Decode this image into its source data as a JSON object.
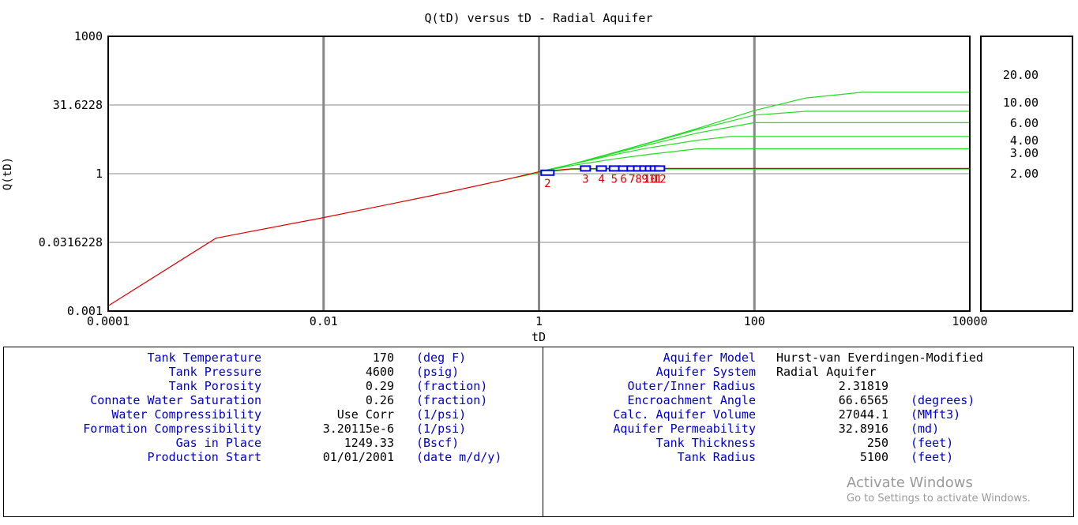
{
  "chart_data": {
    "type": "line",
    "title": "Q(tD) versus tD - Radial Aquifer",
    "xlabel": "tD",
    "ylabel": "Q(tD)",
    "xscale": "log",
    "yscale": "log",
    "xlim": [
      0.0001,
      10000
    ],
    "ylim": [
      0.001,
      1000
    ],
    "x_ticks": [
      "0.0001",
      "0.01",
      "1",
      "100",
      "10000"
    ],
    "y_ticks": [
      "0.001",
      "0.0316228",
      "1",
      "31.6228",
      "1000"
    ],
    "grid": true,
    "colors": {
      "base": "#dd0000",
      "curves": "#22dd22",
      "markers": "#0000ee",
      "marker_labels": "#dd0000",
      "grid": "#888888"
    },
    "base_curve": {
      "x": [
        0.0001,
        0.001,
        0.01,
        0.1,
        0.5,
        1,
        2,
        5,
        10000
      ],
      "y": [
        0.0013,
        0.039,
        0.11,
        0.33,
        0.75,
        1.1,
        1.28,
        1.3,
        1.3
      ]
    },
    "series": [
      {
        "name": "2.00",
        "x": [
          0.5,
          1,
          2,
          4,
          10000
        ],
        "y": [
          0.75,
          1.05,
          1.25,
          1.26,
          1.26
        ]
      },
      {
        "name": "3.00",
        "x": [
          1,
          2,
          5,
          10,
          30,
          10000
        ],
        "y": [
          1.1,
          1.5,
          2.1,
          2.6,
          3.5,
          3.5
        ]
      },
      {
        "name": "4.00",
        "x": [
          1,
          2,
          5,
          10,
          30,
          60,
          10000
        ],
        "y": [
          1.1,
          1.6,
          2.6,
          3.6,
          5.4,
          6.5,
          6.5
        ]
      },
      {
        "name": "6.00",
        "x": [
          1,
          2,
          5,
          10,
          30,
          100,
          10000
        ],
        "y": [
          1.1,
          1.6,
          2.8,
          4.2,
          7.8,
          13,
          13
        ]
      },
      {
        "name": "10.00",
        "x": [
          1,
          2,
          5,
          10,
          30,
          100,
          300,
          10000
        ],
        "y": [
          1.1,
          1.6,
          2.9,
          4.5,
          9.3,
          19,
          23,
          23
        ]
      },
      {
        "name": "20.00",
        "x": [
          1,
          2,
          5,
          10,
          30,
          100,
          300,
          1000,
          10000
        ],
        "y": [
          1.1,
          1.6,
          2.9,
          4.6,
          9.8,
          24,
          45,
          60,
          60
        ]
      }
    ],
    "markers": {
      "labels": [
        "2",
        "3",
        "4",
        "5",
        "6",
        "7",
        "8",
        "9",
        "10",
        "11",
        "12"
      ],
      "x": [
        1.2,
        2.7,
        3.8,
        5.0,
        6.1,
        7.3,
        8.4,
        9.6,
        10.8,
        12.0,
        13.2
      ],
      "y": [
        1.05,
        1.3,
        1.3,
        1.3,
        1.3,
        1.3,
        1.3,
        1.3,
        1.3,
        1.3,
        1.3
      ]
    }
  },
  "params_left": [
    {
      "label": "Tank Temperature",
      "value": "170",
      "unit": "(deg F)"
    },
    {
      "label": "Tank Pressure",
      "value": "4600",
      "unit": "(psig)"
    },
    {
      "label": "Tank Porosity",
      "value": "0.29",
      "unit": "(fraction)"
    },
    {
      "label": "Connate Water Saturation",
      "value": "0.26",
      "unit": "(fraction)"
    },
    {
      "label": "Water Compressibility",
      "value": "Use Corr",
      "unit": "(1/psi)"
    },
    {
      "label": "Formation Compressibility",
      "value": "3.20115e-6",
      "unit": "(1/psi)"
    },
    {
      "label": "Gas in Place",
      "value": "1249.33",
      "unit": "(Bscf)"
    },
    {
      "label": "Production Start",
      "value": "01/01/2001",
      "unit": "(date m/d/y)"
    }
  ],
  "params_right": [
    {
      "label": "Aquifer Model",
      "value": "Hurst-van Everdingen-Modified",
      "unit": ""
    },
    {
      "label": "Aquifer System",
      "value": "Radial Aquifer",
      "unit": ""
    },
    {
      "label": "Outer/Inner Radius",
      "value": "2.31819",
      "unit": ""
    },
    {
      "label": "Encroachment Angle",
      "value": "66.6565",
      "unit": "(degrees)"
    },
    {
      "label": "Calc. Aquifer Volume",
      "value": "27044.1",
      "unit": "(MMft3)"
    },
    {
      "label": "Aquifer Permeability",
      "value": "32.8916",
      "unit": "(md)"
    },
    {
      "label": "Tank Thickness",
      "value": "250",
      "unit": "(feet)"
    },
    {
      "label": "Tank Radius",
      "value": "5100",
      "unit": "(feet)"
    }
  ],
  "watermark": {
    "title": "Activate Windows",
    "subtitle": "Go to Settings to activate Windows."
  }
}
